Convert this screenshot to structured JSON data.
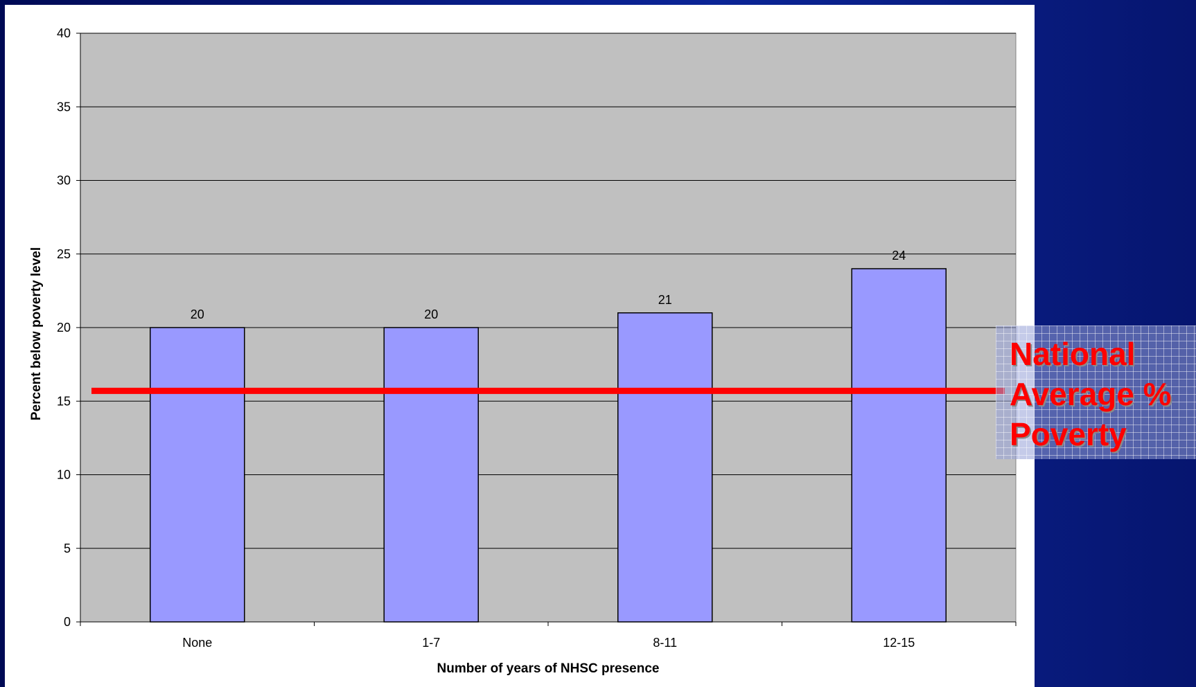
{
  "chart_data": {
    "type": "bar",
    "categories": [
      "None",
      "1-7",
      "8-11",
      "12-15"
    ],
    "values": [
      20,
      20,
      21,
      24
    ],
    "data_labels": [
      "20",
      "20",
      "21",
      "24"
    ],
    "xlabel": "Number of years of NHSC presence",
    "ylabel": "Percent below poverty level",
    "ylim": [
      0,
      40
    ],
    "yticks": [
      0,
      5,
      10,
      15,
      20,
      25,
      30,
      35,
      40
    ],
    "ytick_labels": [
      "0",
      "5",
      "10",
      "15",
      "20",
      "25",
      "30",
      "35",
      "40"
    ],
    "grid": true,
    "legend": "none",
    "reference_line": {
      "value": 15.7,
      "label_lines": [
        "National",
        "Average %",
        "Poverty"
      ],
      "color": "#ff0000"
    },
    "colors": {
      "bar_fill": "#9999ff",
      "plot_background": "#c0c0c0",
      "gridline": "#000000"
    }
  }
}
